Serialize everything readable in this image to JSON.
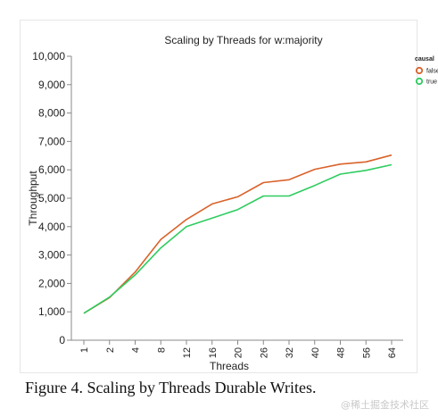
{
  "caption": "Figure 4. Scaling by Threads Durable Writes.",
  "watermark": "@稀土掘金技术社区",
  "chart_data": {
    "type": "line",
    "title": "Scaling by Threads for w:majority",
    "xlabel": "Threads",
    "ylabel": "Throughput",
    "categories": [
      "1",
      "2",
      "4",
      "8",
      "12",
      "16",
      "20",
      "26",
      "32",
      "40",
      "48",
      "56",
      "64"
    ],
    "ylim": [
      0,
      10000
    ],
    "yticks": [
      0,
      1000,
      2000,
      3000,
      4000,
      5000,
      6000,
      7000,
      8000,
      9000,
      10000
    ],
    "ytick_labels": [
      "0",
      "1,000",
      "2,000",
      "3,000",
      "4,000",
      "5,000",
      "6,000",
      "7,000",
      "8,000",
      "9,000",
      "10,000"
    ],
    "grid": false,
    "legend_title": "causal",
    "legend_position": "top-right",
    "series": [
      {
        "name": "false",
        "color": "#d9622b",
        "values": [
          950,
          1500,
          2400,
          3550,
          4250,
          4800,
          5050,
          5550,
          5650,
          6020,
          6200,
          6280,
          6520
        ]
      },
      {
        "name": "true",
        "color": "#2ecc5f",
        "values": [
          950,
          1520,
          2300,
          3250,
          4000,
          4300,
          4600,
          5080,
          5080,
          5450,
          5850,
          5980,
          6180
        ]
      }
    ]
  }
}
